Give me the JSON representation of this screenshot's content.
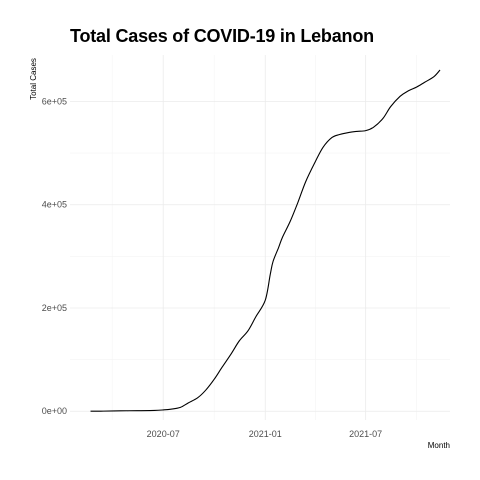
{
  "chart_data": {
    "type": "line",
    "title": "Total Cases of COVID-19 in Lebanon",
    "xlabel": "Month",
    "ylabel": "Total Cases",
    "x_ticks": [
      {
        "date": "2020-07-01",
        "label": "2020-07"
      },
      {
        "date": "2021-01-01",
        "label": "2021-01"
      },
      {
        "date": "2021-07-01",
        "label": "2021-07"
      }
    ],
    "y_ticks": [
      {
        "value": 0,
        "label": "0e+00"
      },
      {
        "value": 200000,
        "label": "2e+05"
      },
      {
        "value": 400000,
        "label": "4e+05"
      },
      {
        "value": 600000,
        "label": "6e+05"
      }
    ],
    "xlim": [
      "2020-01-15",
      "2021-11-30"
    ],
    "ylim": [
      -17000,
      690000
    ],
    "grid": true,
    "line_color": "#000000",
    "grid_color": "#ebebeb",
    "series": [
      {
        "x": [
          "2020-02-21",
          "2020-03-15",
          "2020-04-15",
          "2020-05-15",
          "2020-06-15",
          "2020-07-01",
          "2020-07-15",
          "2020-08-01",
          "2020-08-15",
          "2020-09-01",
          "2020-09-15",
          "2020-10-01",
          "2020-10-15",
          "2020-11-01",
          "2020-11-15",
          "2020-12-01",
          "2020-12-15",
          "2021-01-01",
          "2021-01-10",
          "2021-01-15",
          "2021-01-25",
          "2021-02-01",
          "2021-02-15",
          "2021-03-01",
          "2021-03-15",
          "2021-04-01",
          "2021-04-15",
          "2021-05-01",
          "2021-05-15",
          "2021-06-01",
          "2021-06-15",
          "2021-07-01",
          "2021-07-15",
          "2021-08-01",
          "2021-08-15",
          "2021-09-01",
          "2021-09-15",
          "2021-10-01",
          "2021-10-15",
          "2021-11-01",
          "2021-11-12"
        ],
        "y": [
          0,
          200,
          800,
          1000,
          1500,
          2500,
          4000,
          7500,
          16000,
          26000,
          40000,
          62000,
          85000,
          112000,
          136000,
          156000,
          183000,
          215000,
          265000,
          290000,
          317000,
          337000,
          368000,
          405000,
          445000,
          483000,
          511000,
          530000,
          536000,
          540000,
          542000,
          543500,
          550000,
          567000,
          590000,
          610000,
          620000,
          628000,
          637000,
          648000,
          661000
        ]
      }
    ]
  }
}
